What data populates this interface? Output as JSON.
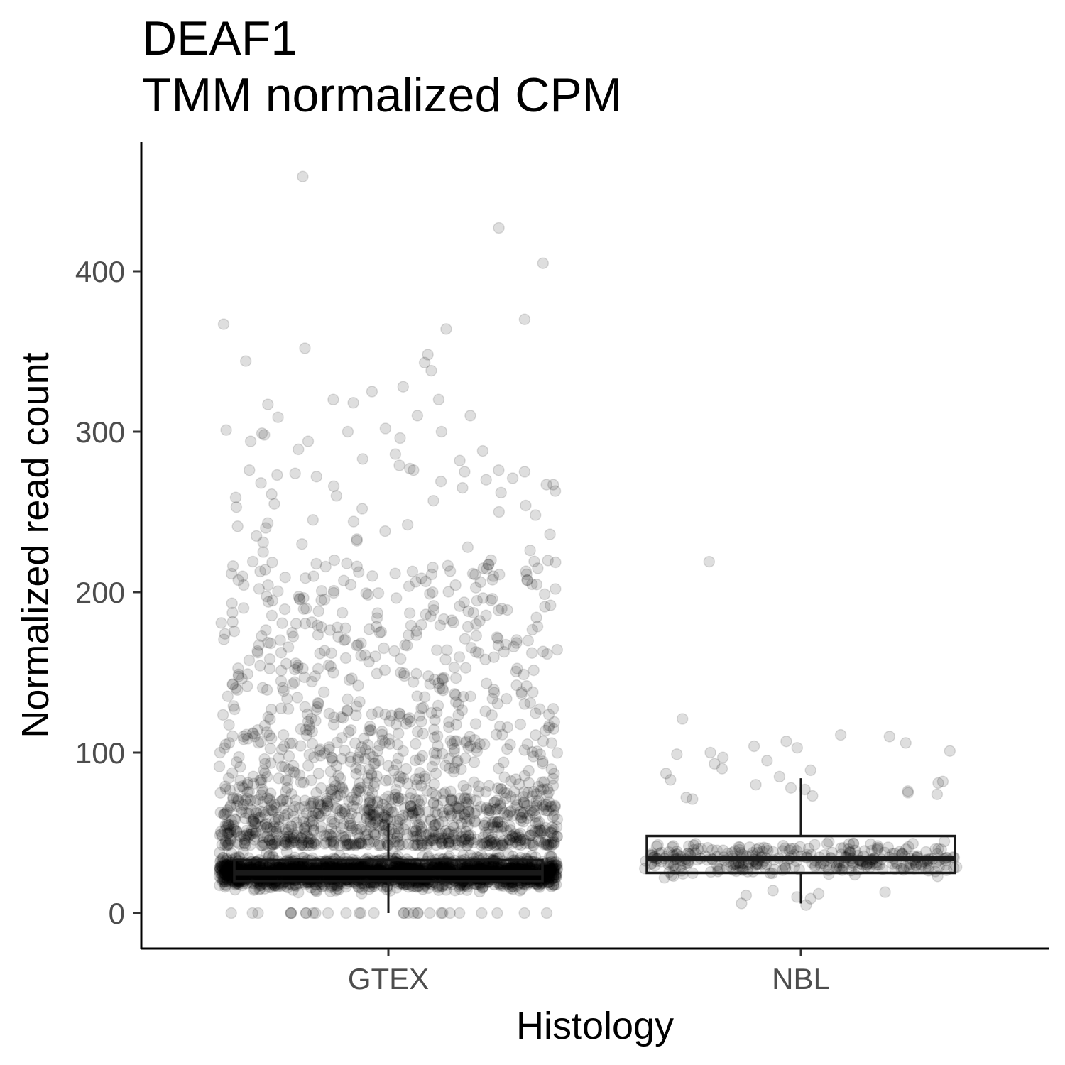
{
  "chart_data": {
    "type": "scatter",
    "subtype": "jittered-points-with-boxplot",
    "title": "DEAF1",
    "subtitle": "TMM normalized CPM",
    "xlabel": "Histology",
    "ylabel": "Normalized read count",
    "categories": [
      "GTEX",
      "NBL"
    ],
    "yticks": [
      0,
      100,
      200,
      300,
      400
    ],
    "ylim": [
      -22,
      478
    ],
    "grid": false,
    "legend": "none",
    "point_color": "#000000",
    "point_opacity": 0.13,
    "boxplots": [
      {
        "category": "GTEX",
        "q1": 20,
        "median": 25,
        "q3": 33,
        "whisker_low": 0,
        "whisker_high": 56
      },
      {
        "category": "NBL",
        "q1": 25,
        "median": 34,
        "q3": 48,
        "whisker_low": 6,
        "whisker_high": 84
      }
    ],
    "points": {
      "GTEX": {
        "dense_band": {
          "count": 2600,
          "min": 8,
          "max": 42
        },
        "mid_band": {
          "count": 700,
          "min": 42,
          "max": 70
        },
        "upper": {
          "count": 700,
          "min": 70,
          "max": 220
        },
        "zeros": {
          "count": 30,
          "value": 0
        },
        "explicit": [
          459,
          427,
          405,
          370,
          367,
          364,
          352,
          348,
          344,
          343,
          338,
          328,
          325,
          320,
          320,
          318,
          317,
          310,
          310,
          309,
          302,
          301,
          300,
          300,
          299,
          298,
          296,
          294,
          294,
          289,
          288,
          286,
          283,
          282,
          279,
          277,
          276,
          276,
          276,
          275,
          275,
          274,
          273,
          272,
          271,
          270,
          269,
          268,
          267,
          267,
          266,
          265,
          263,
          262,
          261,
          260,
          259,
          257,
          255,
          254,
          253,
          252,
          250,
          248,
          245,
          244,
          243,
          242,
          241,
          240,
          238,
          236,
          235,
          233,
          232,
          231,
          230,
          228,
          226,
          225
        ]
      },
      "NBL": {
        "main": {
          "count": 330,
          "min": 10,
          "max": 70
        },
        "explicit": [
          219,
          121,
          111,
          110,
          107,
          106,
          104,
          103,
          101,
          100,
          99,
          97,
          95,
          93,
          90,
          89,
          87,
          85,
          83,
          82,
          81,
          80,
          78,
          77,
          76,
          75,
          74,
          73,
          72,
          71,
          9,
          6,
          5,
          12,
          14,
          11,
          10,
          13
        ]
      }
    }
  }
}
